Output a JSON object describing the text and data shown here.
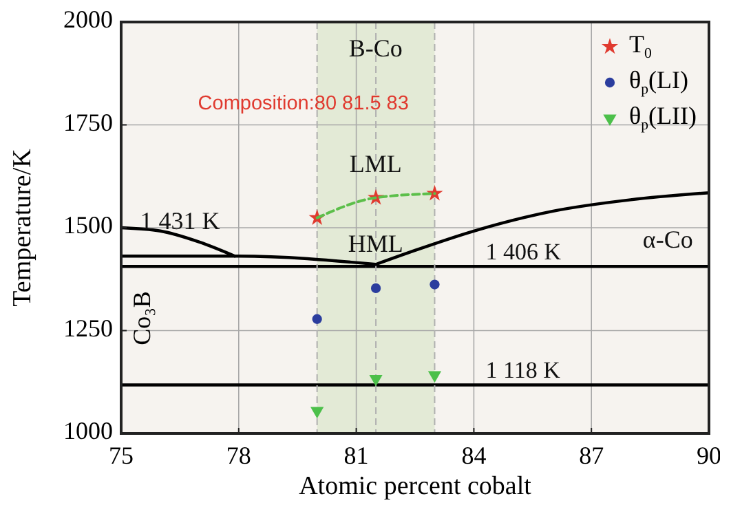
{
  "chart_data": {
    "type": "scatter",
    "xlabel": "Atomic percent cobalt",
    "ylabel": "Temperature/K",
    "xlim": [
      75,
      90
    ],
    "ylim": [
      1000,
      2000
    ],
    "xticks": [
      75,
      78,
      81,
      84,
      87,
      90
    ],
    "yticks": [
      1000,
      1250,
      1500,
      1750,
      2000
    ],
    "grid": true,
    "legend": "top right",
    "series": [
      {
        "name": "T$_{0}$",
        "marker": "star",
        "color": "#e03a2f",
        "x": [
          80,
          81.5,
          83
        ],
        "values": [
          1524,
          1573,
          1583
        ]
      },
      {
        "name": "θ$_{p}$(LI)",
        "marker": "circle",
        "color": "#2b3d9e",
        "x": [
          80,
          81.5,
          83
        ],
        "values": [
          1278,
          1353,
          1362
        ]
      },
      {
        "name": "θ$_{p}$(LII)",
        "marker": "triangle",
        "color": "#4cc04a",
        "x": [
          80,
          81.5,
          83
        ],
        "values": [
          1055,
          1133,
          1142
        ]
      },
      {
        "type": "line",
        "color": "#5cbf4a",
        "line_style": "dashed",
        "marker": "none",
        "x": [
          80,
          81.5,
          83
        ],
        "values": [
          1524,
          1573,
          1583
        ]
      },
      {
        "type": "line",
        "color": "#000000",
        "line_style": "solid",
        "marker": "none",
        "x": [
          75,
          76,
          77,
          77.9
        ],
        "values": [
          1500,
          1492,
          1465,
          1431
        ]
      },
      {
        "type": "line",
        "color": "#000000",
        "line_style": "solid",
        "marker": "none",
        "x": [
          75,
          78,
          81.5
        ],
        "values": [
          1431,
          1431,
          1411
        ]
      },
      {
        "type": "line",
        "color": "#000000",
        "line_style": "solid",
        "marker": "none",
        "x": [
          81.5,
          82.5,
          84,
          86,
          88,
          90
        ],
        "values": [
          1411,
          1445,
          1492,
          1540,
          1568,
          1585
        ]
      }
    ],
    "ref_lines": [
      {
        "axis": "y",
        "value": 1406,
        "label": "1 406 K",
        "color": "#000000",
        "line_style": "solid"
      },
      {
        "axis": "y",
        "value": 1118,
        "label": "1 118 K",
        "color": "#000000",
        "line_style": "solid"
      },
      {
        "axis": "x",
        "value": 80,
        "color": "#b0b0b0",
        "line_style": "dashed"
      },
      {
        "axis": "x",
        "value": 81.5,
        "color": "#b0b0b0",
        "line_style": "dashed"
      },
      {
        "axis": "x",
        "value": 83,
        "color": "#b0b0b0",
        "line_style": "dashed"
      }
    ],
    "bands": [
      {
        "axis": "x",
        "from": 80,
        "to": 83,
        "color": "#e3ead6"
      }
    ],
    "annotations": [
      "B-Co",
      "LML",
      "HML",
      "α-Co",
      "1 431 K",
      "Co₃B",
      "Composition:80  81.5  83"
    ]
  }
}
